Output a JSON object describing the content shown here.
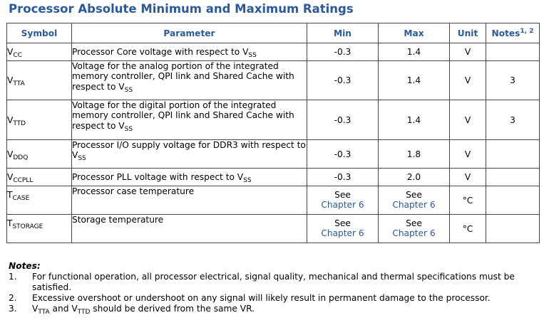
{
  "title": "Processor Absolute Minimum and Maximum Ratings",
  "headers": {
    "symbol": "Symbol",
    "parameter": "Parameter",
    "min": "Min",
    "max": "Max",
    "unit": "Unit",
    "notes": "Notes",
    "notes_sup": "1, 2"
  },
  "rows": [
    {
      "sym": "V",
      "sub": "CC",
      "param": "Processor Core voltage with respect to V",
      "param_sub": "SS",
      "min": "-0.3",
      "max": "1.4",
      "unit": "V",
      "notes": ""
    },
    {
      "sym": "V",
      "sub": "TTA",
      "param": "Voltage for the analog portion of the integrated memory controller, QPI link and Shared Cache with respect to V",
      "param_sub": "SS",
      "min": "-0.3",
      "max": "1.4",
      "unit": "V",
      "notes": "3"
    },
    {
      "sym": "V",
      "sub": "TTD",
      "param": "Voltage for the digital portion of the integrated memory controller, QPI link and Shared Cache with respect to V",
      "param_sub": "SS",
      "min": "-0.3",
      "max": "1.4",
      "unit": "V",
      "notes": "3"
    },
    {
      "sym": "V",
      "sub": "DDQ",
      "param": "Processor I/O supply voltage for DDR3 with respect to V",
      "param_sub": "SS",
      "min": "-0.3",
      "max": "1.8",
      "unit": "V",
      "notes": ""
    },
    {
      "sym": "V",
      "sub": "CCPLL",
      "param": "Processor PLL voltage with respect to V",
      "param_sub": "SS",
      "min": "-0.3",
      "max": "2.0",
      "unit": "V",
      "notes": ""
    },
    {
      "sym": "T",
      "sub": "CASE",
      "param": "Processor case temperature",
      "min_a": "See",
      "min_b": "Chapter 6",
      "max_a": "See",
      "max_b": "Chapter 6",
      "unit": "°C",
      "notes": ""
    },
    {
      "sym": "T",
      "sub": "STORAGE",
      "param": "Storage temperature",
      "min_a": "See",
      "min_b": "Chapter 6",
      "max_a": "See",
      "max_b": "Chapter 6",
      "unit": "°C",
      "notes": ""
    }
  ],
  "notes": {
    "heading": "Notes:",
    "items": [
      {
        "num": "1.",
        "text": "For functional operation, all processor electrical, signal quality, mechanical and thermal specifications must be satisfied."
      },
      {
        "num": "2.",
        "text": "Excessive overshoot or undershoot on any signal will likely result in permanent damage to the processor."
      },
      {
        "num": "3.",
        "pre": "V",
        "sub1": "TTA",
        "mid": " and V",
        "sub2": "TTD",
        "post": " should be derived from the same VR."
      }
    ]
  }
}
